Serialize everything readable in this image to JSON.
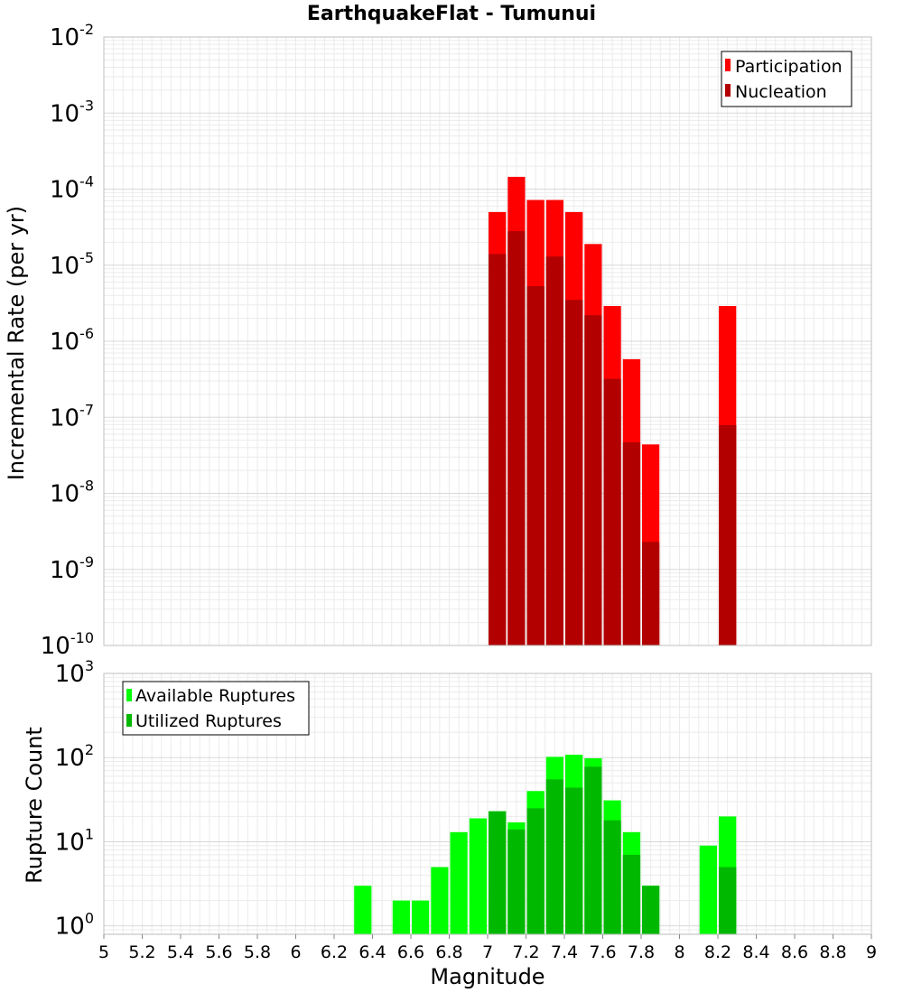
{
  "colors": {
    "participation": "#ff0000",
    "nucleation": "#b20000",
    "available": "#00ff00",
    "utilized": "#00b800",
    "grid": "#ebebeb",
    "frame": "#bfbfbf"
  },
  "chart_data": [
    {
      "id": "rate",
      "type": "bar",
      "title": "EarthquakeFlat - Tumunui",
      "ylabel": "Incremental Rate (per yr)",
      "xlabel": "",
      "yscale": "log",
      "ylim_exp": [
        -10,
        -2
      ],
      "xlim": [
        5,
        9
      ],
      "bin_width": 0.1,
      "legend_position": "top-right",
      "series": [
        {
          "name": "Participation",
          "color_key": "participation",
          "x": [
            7.05,
            7.15,
            7.25,
            7.35,
            7.45,
            7.55,
            7.65,
            7.75,
            7.85,
            8.25
          ],
          "values": [
            5e-05,
            0.000145,
            7.2e-05,
            7.2e-05,
            5e-05,
            1.9e-05,
            2.9e-06,
            5.8e-07,
            4.4e-08,
            2.9e-06
          ]
        },
        {
          "name": "Nucleation",
          "color_key": "nucleation",
          "x": [
            7.05,
            7.15,
            7.25,
            7.35,
            7.45,
            7.55,
            7.65,
            7.75,
            7.85,
            8.25
          ],
          "values": [
            1.4e-05,
            2.8e-05,
            5.3e-06,
            1.3e-05,
            3.5e-06,
            2.2e-06,
            3.2e-07,
            4.7e-08,
            2.3e-09,
            7.9e-08
          ]
        }
      ]
    },
    {
      "id": "count",
      "type": "bar",
      "title": "",
      "ylabel": "Rupture Count",
      "xlabel": "Magnitude",
      "yscale": "log",
      "ylim_exp": [
        -0.1,
        3
      ],
      "xlim": [
        5,
        9
      ],
      "bin_width": 0.1,
      "legend_position": "top-left",
      "x_ticks": [
        "5",
        "5.2",
        "5.4",
        "5.6",
        "5.8",
        "6",
        "6.2",
        "6.4",
        "6.6",
        "6.8",
        "7",
        "7.2",
        "7.4",
        "7.6",
        "7.8",
        "8",
        "8.2",
        "8.4",
        "8.6",
        "8.8",
        "9"
      ],
      "series": [
        {
          "name": "Available Ruptures",
          "color_key": "available",
          "x": [
            6.35,
            6.55,
            6.65,
            6.75,
            6.85,
            6.95,
            7.05,
            7.15,
            7.25,
            7.35,
            7.45,
            7.55,
            7.65,
            7.75,
            7.85,
            8.15,
            8.25
          ],
          "values": [
            3,
            2,
            2,
            5,
            13,
            19,
            23,
            17,
            40,
            102,
            108,
            98,
            31,
            13,
            3,
            9,
            20
          ]
        },
        {
          "name": "Utilized Ruptures",
          "color_key": "utilized",
          "x": [
            7.05,
            7.15,
            7.25,
            7.35,
            7.45,
            7.55,
            7.65,
            7.75,
            7.85,
            8.25
          ],
          "values": [
            23,
            14,
            25,
            55,
            44,
            78,
            18,
            7,
            3,
            5
          ]
        }
      ]
    }
  ]
}
